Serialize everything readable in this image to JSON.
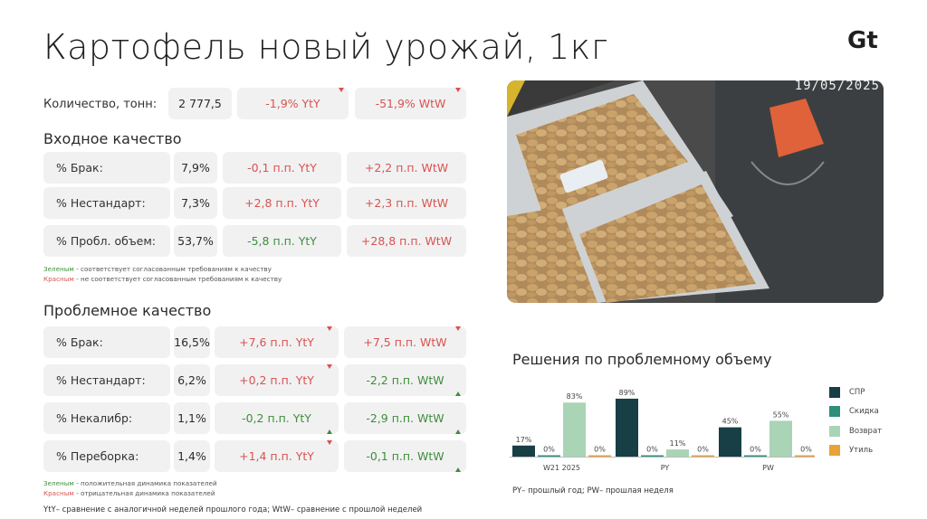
{
  "title": "Картофель новый урожай, 1кг",
  "logo": "Gt",
  "quantity": {
    "label": "Количество, тонн:",
    "value": "2 777,5",
    "yty": "-1,9% YtY",
    "wtw": "-51,9% WtW"
  },
  "input_quality": {
    "title": "Входное качество",
    "rows": [
      {
        "label": "% Брак:",
        "value": "7,9%",
        "yty": "-0,1 п.п. YtY",
        "wtw": "+2,2 п.п. WtW"
      },
      {
        "label": "% Нестандарт:",
        "value": "7,3%",
        "yty": "+2,8 п.п. YtY",
        "wtw": "+2,3 п.п. WtW"
      },
      {
        "label": "% Пробл. объем:",
        "value": "53,7%",
        "yty": "-5,8 п.п. YtY",
        "wtw": "+28,8 п.п. WtW"
      }
    ],
    "note_green_word": "Зеленым",
    "note_green_text": " - соответствует согласованным требованиям к качеству",
    "note_red_word": "Красным",
    "note_red_text": " - не соответствует согласованным требованиям к качеству"
  },
  "problem_quality": {
    "title": "Проблемное качество",
    "rows": [
      {
        "label": "% Брак:",
        "value": "16,5%",
        "yty": "+7,6 п.п. YtY",
        "wtw": "+7,5 п.п. WtW"
      },
      {
        "label": "% Нестандарт:",
        "value": "6,2%",
        "yty": "+0,2 п.п. YtY",
        "wtw": "-2,2 п.п. WtW"
      },
      {
        "label": "% Некалибр:",
        "value": "1,1%",
        "yty": "-0,2 п.п. YtY",
        "wtw": "-2,9 п.п. WtW"
      },
      {
        "label": "% Переборка:",
        "value": "1,4%",
        "yty": "+1,4 п.п. YtY",
        "wtw": "-0,1 п.п. WtW"
      }
    ],
    "note_green_word": "Зеленым",
    "note_green_text": " - положительная динамика показателей",
    "note_red_word": "Красным",
    "note_red_text": " - отрицательная динамика показателей"
  },
  "footnote": "YtY– сравнение с аналогичной неделей прошлого года; WtW– сравнение с прошлой неделей",
  "photo": {
    "timestamp": "19/05/2025"
  },
  "chart_footnote": "PY– прошлый год;  PW– прошлая неделя",
  "colors": {
    "red": "#d9534f",
    "green": "#3e8f3a",
    "spr": "#173f45",
    "discount": "#2e8f7a",
    "return": "#a9d4b5",
    "util": "#e8a23a"
  },
  "chart_data": {
    "type": "bar",
    "title": "Решения по проблемному объему",
    "categories": [
      "W21 2025",
      "PY",
      "PW"
    ],
    "series": [
      {
        "name": "СПР",
        "values": [
          17,
          89,
          45
        ]
      },
      {
        "name": "Скидка",
        "values": [
          0,
          0,
          0
        ]
      },
      {
        "name": "Возврат",
        "values": [
          83,
          11,
          55
        ]
      },
      {
        "name": "Утиль",
        "values": [
          0,
          0,
          0
        ]
      }
    ],
    "value_suffix": "%",
    "ylim": [
      0,
      100
    ],
    "legend": "right",
    "grid": false
  }
}
